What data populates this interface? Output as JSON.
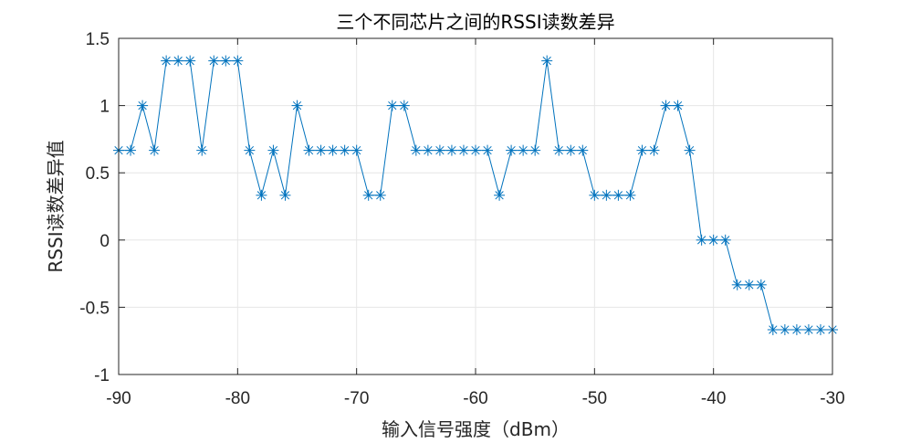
{
  "chart_data": {
    "type": "line",
    "title": "三个不同芯片之间的RSSI读数差异",
    "xlabel": "输入信号强度（dBm）",
    "ylabel": "RSSI读数差异值",
    "xlim": [
      -90,
      -30
    ],
    "ylim": [
      -1,
      1.5
    ],
    "xticks": [
      "-90",
      "-80",
      "-70",
      "-60",
      "-50",
      "-40",
      "-30"
    ],
    "yticks": [
      "-1",
      "-0.5",
      "0",
      "0.5",
      "1",
      "1.5"
    ],
    "xtick_values": [
      -90,
      -80,
      -70,
      -60,
      -50,
      -40,
      -30
    ],
    "ytick_values": [
      -1,
      -0.5,
      0,
      0.5,
      1,
      1.5
    ],
    "grid": true,
    "marker": "asterisk",
    "line_color": "#0072BD",
    "x": [
      -90,
      -89,
      -88,
      -87,
      -86,
      -85,
      -84,
      -83,
      -82,
      -81,
      -80,
      -79,
      -78,
      -77,
      -76,
      -75,
      -74,
      -73,
      -72,
      -71,
      -70,
      -69,
      -68,
      -67,
      -66,
      -65,
      -64,
      -63,
      -62,
      -61,
      -60,
      -59,
      -58,
      -57,
      -56,
      -55,
      -54,
      -53,
      -52,
      -51,
      -50,
      -49,
      -48,
      -47,
      -46,
      -45,
      -44,
      -43,
      -42,
      -41,
      -40,
      -39,
      -38,
      -37,
      -36,
      -35,
      -34,
      -33,
      -32,
      -31,
      -30
    ],
    "y": [
      0.667,
      0.667,
      1,
      0.667,
      1.333,
      1.333,
      1.333,
      0.667,
      1.333,
      1.333,
      1.333,
      0.667,
      0.333,
      0.667,
      0.333,
      1,
      0.667,
      0.667,
      0.667,
      0.667,
      0.667,
      0.333,
      0.333,
      1,
      1,
      0.667,
      0.667,
      0.667,
      0.667,
      0.667,
      0.667,
      0.667,
      0.333,
      0.667,
      0.667,
      0.667,
      1.333,
      0.667,
      0.667,
      0.667,
      0.333,
      0.333,
      0.333,
      0.333,
      0.667,
      0.667,
      1,
      1,
      0.667,
      0,
      0,
      0,
      -0.333,
      -0.333,
      -0.333,
      -0.667,
      -0.667,
      -0.667,
      -0.667,
      -0.667,
      -0.667
    ]
  }
}
